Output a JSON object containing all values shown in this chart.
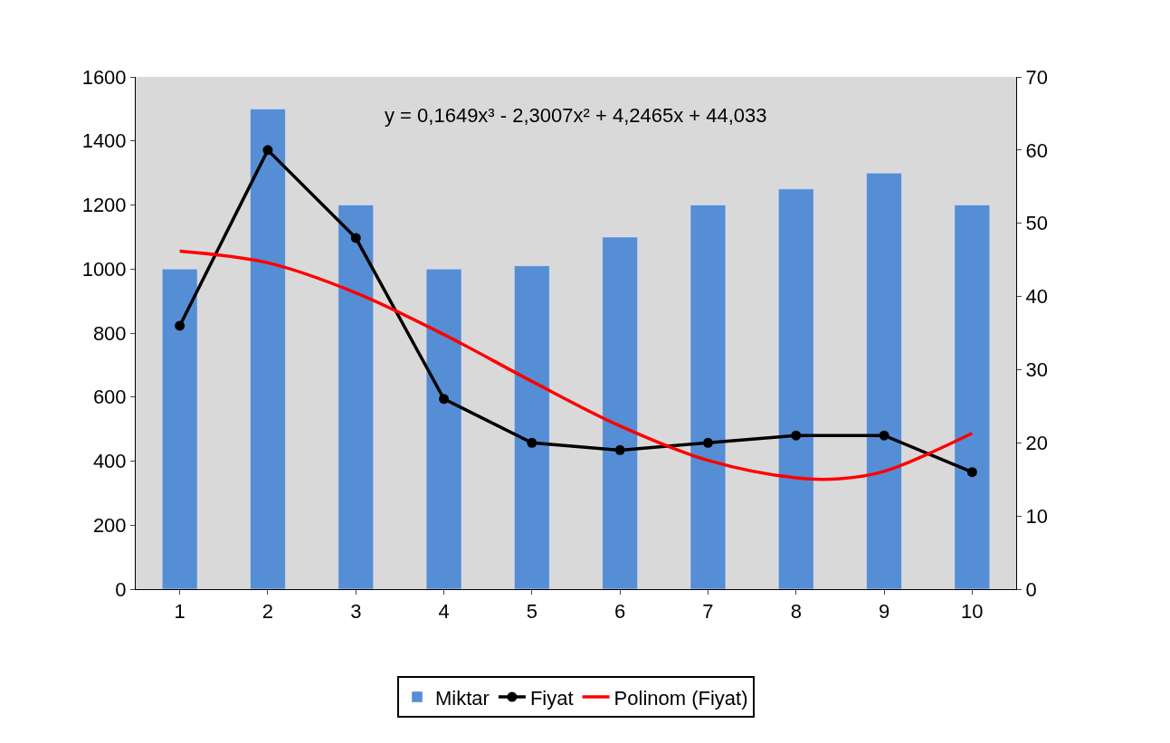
{
  "chart_data": {
    "type": "bar",
    "x": [
      1,
      2,
      3,
      4,
      5,
      6,
      7,
      8,
      9,
      10
    ],
    "xlim": [
      0.5,
      10.5
    ],
    "xticks": [
      1,
      2,
      3,
      4,
      5,
      6,
      7,
      8,
      9,
      10
    ],
    "ylim": [
      0,
      1600
    ],
    "yticks": [
      0,
      200,
      400,
      600,
      800,
      1000,
      1200,
      1400,
      1600
    ],
    "y2lim": [
      0,
      70
    ],
    "y2ticks": [
      0,
      10,
      20,
      30,
      40,
      50,
      60,
      70
    ],
    "grid": false,
    "legend": "bottom",
    "annotations": [
      "y = 0,1649x³ - 2,3007x² + 4,2465x + 44,033"
    ],
    "series": [
      {
        "name": "Miktar",
        "color": "#558ed5",
        "values": [
          1000,
          1500,
          1200,
          1000,
          1010,
          1100,
          1200,
          1250,
          1300,
          1200
        ]
      },
      {
        "name": "Fiyat",
        "type": "line",
        "axis": "y2",
        "color": "#000000",
        "marker": "circle",
        "values": [
          36,
          60,
          48,
          26,
          20,
          19,
          20,
          21,
          21,
          16
        ]
      },
      {
        "name": "Polinom (Fiyat)",
        "type": "line",
        "axis": "y2",
        "color": "#ff0000",
        "marker": "none",
        "x": [
          1,
          2,
          3,
          4,
          5,
          6,
          7,
          8,
          8.5,
          9,
          10
        ],
        "values": [
          46.2,
          44.6,
          40.5,
          34.8,
          28.4,
          22.3,
          17.6,
          15.2,
          15.1,
          16.1,
          21.3
        ]
      }
    ]
  }
}
